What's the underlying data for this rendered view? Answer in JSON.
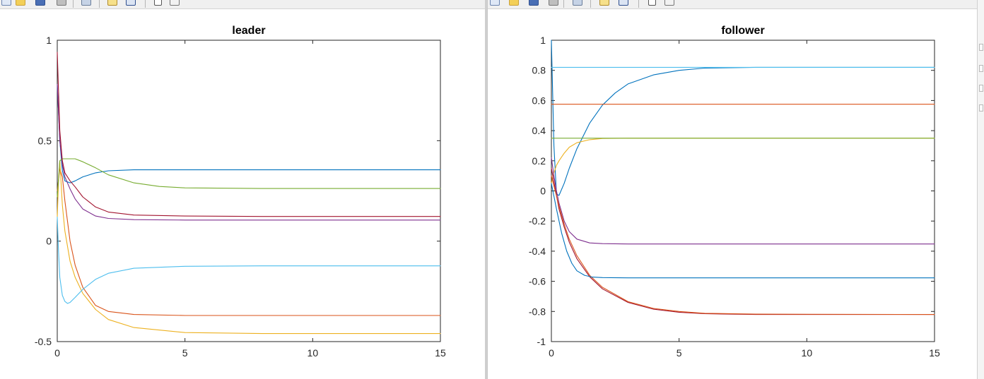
{
  "toolbar": {
    "icons": [
      "new-figure-icon",
      "open-file-icon",
      "save-icon",
      "print-icon",
      "link-icon",
      "new-document-icon",
      "insert-colorbar-icon",
      "pointer-icon",
      "plot-tools-icon"
    ]
  },
  "chart_data": [
    {
      "type": "line",
      "title": "leader",
      "xlabel": "",
      "ylabel": "",
      "xlim": [
        0,
        15
      ],
      "ylim": [
        -0.5,
        1
      ],
      "xticks": [
        "0",
        "5",
        "10",
        "15"
      ],
      "yticks": [
        "-0.5",
        "0",
        "0.5",
        "1"
      ],
      "grid": false,
      "series": [
        {
          "color": "#0072BD",
          "x": [
            0,
            0.1,
            0.2,
            0.3,
            0.5,
            0.7,
            1,
            1.5,
            2,
            3,
            5,
            8,
            15
          ],
          "y": [
            0.78,
            0.5,
            0.35,
            0.3,
            0.29,
            0.3,
            0.32,
            0.34,
            0.35,
            0.355,
            0.355,
            0.355,
            0.355
          ]
        },
        {
          "color": "#D95319",
          "x": [
            0,
            0.1,
            0.2,
            0.3,
            0.5,
            0.7,
            1,
            1.5,
            2,
            3,
            5,
            8,
            15
          ],
          "y": [
            0.25,
            0.36,
            0.32,
            0.2,
            0.0,
            -0.12,
            -0.23,
            -0.32,
            -0.35,
            -0.365,
            -0.37,
            -0.37,
            -0.37
          ]
        },
        {
          "color": "#EDB120",
          "x": [
            0,
            0.05,
            0.1,
            0.2,
            0.3,
            0.5,
            0.7,
            1,
            1.5,
            2,
            3,
            5,
            8,
            15
          ],
          "y": [
            0.12,
            0.3,
            0.4,
            0.18,
            0.05,
            -0.1,
            -0.18,
            -0.26,
            -0.34,
            -0.39,
            -0.43,
            -0.455,
            -0.46,
            -0.46
          ]
        },
        {
          "color": "#7E2F8E",
          "x": [
            0,
            0.1,
            0.2,
            0.3,
            0.5,
            0.7,
            1,
            1.5,
            2,
            3,
            5,
            8,
            15
          ],
          "y": [
            0.78,
            0.5,
            0.38,
            0.32,
            0.26,
            0.21,
            0.16,
            0.125,
            0.113,
            0.107,
            0.105,
            0.105,
            0.105
          ]
        },
        {
          "color": "#77AC30",
          "x": [
            0,
            0.1,
            0.2,
            0.3,
            0.5,
            0.7,
            1,
            1.5,
            2,
            3,
            4,
            5,
            8,
            15
          ],
          "y": [
            0.22,
            0.4,
            0.41,
            0.41,
            0.41,
            0.41,
            0.395,
            0.365,
            0.33,
            0.29,
            0.272,
            0.265,
            0.262,
            0.262
          ]
        },
        {
          "color": "#4DBEEE",
          "x": [
            0,
            0.05,
            0.1,
            0.2,
            0.3,
            0.4,
            0.5,
            0.7,
            1,
            1.5,
            2,
            3,
            5,
            8,
            15
          ],
          "y": [
            0.12,
            -0.05,
            -0.18,
            -0.27,
            -0.3,
            -0.31,
            -0.305,
            -0.28,
            -0.24,
            -0.19,
            -0.16,
            -0.135,
            -0.125,
            -0.123,
            -0.123
          ]
        },
        {
          "color": "#A2142F",
          "x": [
            0,
            0.1,
            0.2,
            0.3,
            0.5,
            0.7,
            1,
            1.5,
            2,
            3,
            5,
            8,
            15
          ],
          "y": [
            0.94,
            0.55,
            0.4,
            0.34,
            0.3,
            0.27,
            0.22,
            0.17,
            0.145,
            0.13,
            0.125,
            0.123,
            0.123
          ]
        }
      ]
    },
    {
      "type": "line",
      "title": "follower",
      "xlabel": "",
      "ylabel": "",
      "xlim": [
        0,
        15
      ],
      "ylim": [
        -1,
        1
      ],
      "xticks": [
        "0",
        "5",
        "10",
        "15"
      ],
      "yticks": [
        "-1",
        "-0.8",
        "-0.6",
        "-0.4",
        "-0.2",
        "0",
        "0.2",
        "0.4",
        "0.6",
        "0.8",
        "1"
      ],
      "grid": false,
      "series": [
        {
          "color": "#0072BD",
          "x": [
            0,
            0.1,
            0.2,
            0.3,
            0.5,
            0.7,
            1,
            1.5,
            2,
            2.5,
            3,
            4,
            5,
            6,
            8,
            15
          ],
          "y": [
            1.0,
            0.3,
            -0.02,
            -0.03,
            0.05,
            0.15,
            0.28,
            0.45,
            0.57,
            0.65,
            0.71,
            0.77,
            0.8,
            0.815,
            0.82,
            0.82
          ]
        },
        {
          "color": "#D95319",
          "x": [
            0,
            15
          ],
          "y": [
            0.575,
            0.575
          ]
        },
        {
          "color": "#EDB120",
          "x": [
            0,
            0.1,
            0.2,
            0.3,
            0.5,
            0.7,
            1,
            1.5,
            2,
            3,
            15
          ],
          "y": [
            0.05,
            0.12,
            0.17,
            0.2,
            0.25,
            0.29,
            0.32,
            0.34,
            0.348,
            0.35,
            0.35
          ]
        },
        {
          "color": "#7E2F8E",
          "x": [
            0,
            0.1,
            0.2,
            0.3,
            0.5,
            0.7,
            1,
            1.5,
            2,
            3,
            5,
            15
          ],
          "y": [
            0.22,
            0.1,
            0.0,
            -0.08,
            -0.2,
            -0.27,
            -0.32,
            -0.345,
            -0.35,
            -0.352,
            -0.352,
            -0.352
          ]
        },
        {
          "color": "#77AC30",
          "x": [
            0,
            15
          ],
          "y": [
            0.35,
            0.35
          ]
        },
        {
          "color": "#4DBEEE",
          "x": [
            0,
            15
          ],
          "y": [
            0.82,
            0.82
          ]
        },
        {
          "color": "#A2142F",
          "x": [
            0,
            0.3,
            0.5,
            0.7,
            1,
            1.5,
            2,
            3,
            4,
            5,
            6,
            8,
            15
          ],
          "y": [
            0.15,
            -0.12,
            -0.24,
            -0.34,
            -0.45,
            -0.57,
            -0.65,
            -0.74,
            -0.785,
            -0.805,
            -0.815,
            -0.82,
            -0.82
          ]
        },
        {
          "color": "#D95319",
          "x": [
            0,
            0.3,
            0.5,
            0.7,
            1,
            1.5,
            2,
            3,
            4,
            5,
            6,
            8,
            15
          ],
          "y": [
            0.1,
            -0.1,
            -0.22,
            -0.32,
            -0.43,
            -0.56,
            -0.64,
            -0.735,
            -0.78,
            -0.8,
            -0.812,
            -0.818,
            -0.82
          ]
        },
        {
          "color": "#0072BD",
          "x": [
            0,
            0.2,
            0.4,
            0.6,
            0.8,
            1,
            1.3,
            1.6,
            2,
            3,
            15
          ],
          "y": [
            0.05,
            -0.12,
            -0.28,
            -0.4,
            -0.48,
            -0.53,
            -0.56,
            -0.572,
            -0.575,
            -0.577,
            -0.577
          ]
        }
      ]
    }
  ]
}
